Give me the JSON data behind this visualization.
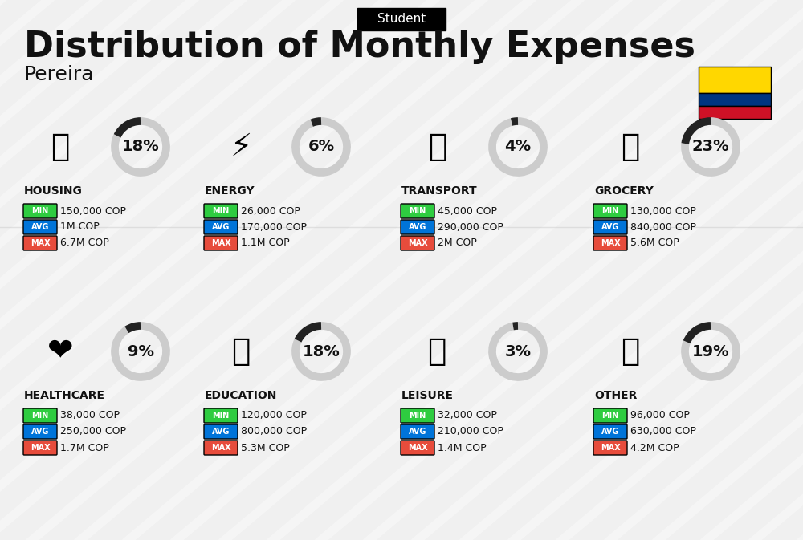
{
  "title": "Distribution of Monthly Expenses",
  "subtitle": "Student",
  "city": "Pereira",
  "bg_color": "#f0f0f0",
  "categories": [
    {
      "name": "HOUSING",
      "percent": 18,
      "min": "150,000 COP",
      "avg": "1M COP",
      "max": "6.7M COP",
      "icon": "housing",
      "row": 0,
      "col": 0
    },
    {
      "name": "ENERGY",
      "percent": 6,
      "min": "26,000 COP",
      "avg": "170,000 COP",
      "max": "1.1M COP",
      "icon": "energy",
      "row": 0,
      "col": 1
    },
    {
      "name": "TRANSPORT",
      "percent": 4,
      "min": "45,000 COP",
      "avg": "290,000 COP",
      "max": "2M COP",
      "icon": "transport",
      "row": 0,
      "col": 2
    },
    {
      "name": "GROCERY",
      "percent": 23,
      "min": "130,000 COP",
      "avg": "840,000 COP",
      "max": "5.6M COP",
      "icon": "grocery",
      "row": 0,
      "col": 3
    },
    {
      "name": "HEALTHCARE",
      "percent": 9,
      "min": "38,000 COP",
      "avg": "250,000 COP",
      "max": "1.7M COP",
      "icon": "healthcare",
      "row": 1,
      "col": 0
    },
    {
      "name": "EDUCATION",
      "percent": 18,
      "min": "120,000 COP",
      "avg": "800,000 COP",
      "max": "5.3M COP",
      "icon": "education",
      "row": 1,
      "col": 1
    },
    {
      "name": "LEISURE",
      "percent": 3,
      "min": "32,000 COP",
      "avg": "210,000 COP",
      "max": "1.4M COP",
      "icon": "leisure",
      "row": 1,
      "col": 2
    },
    {
      "name": "OTHER",
      "percent": 19,
      "min": "96,000 COP",
      "avg": "630,000 COP",
      "max": "4.2M COP",
      "icon": "other",
      "row": 1,
      "col": 3
    }
  ],
  "min_color": "#2ecc40",
  "avg_color": "#0074d9",
  "max_color": "#e74c3c",
  "label_color": "#ffffff",
  "text_color": "#111111",
  "donut_active": "#222222",
  "donut_inactive": "#cccccc",
  "flag_colors": [
    "#FFD700",
    "#003580",
    "#CE1126"
  ],
  "colombia_flag": true
}
